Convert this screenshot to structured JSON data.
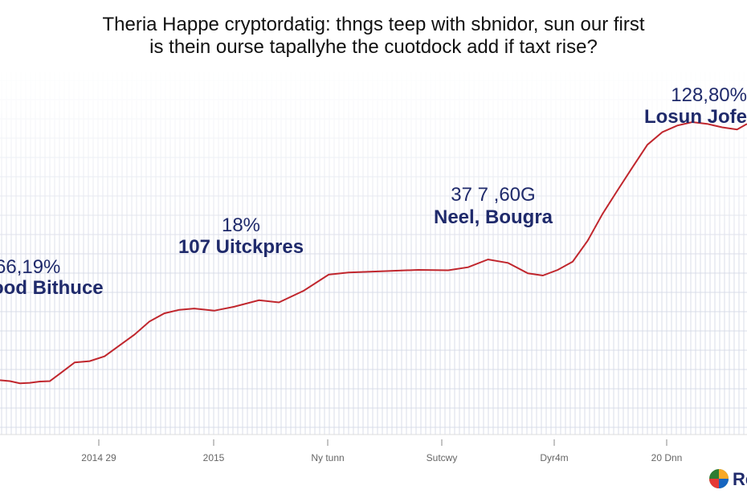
{
  "chart_data": {
    "type": "line",
    "title_lines": [
      "Theria Happe cryptordatig: thngs teep with sbnidor, sun our first",
      "is thein ourse tapallyhe the cuotdock add if taxt rise?"
    ],
    "x_tick_labels": [
      "2014 29",
      "2015",
      "Ny tunn",
      "Sutcwy",
      "Dyr4m",
      "20 Dnn"
    ],
    "x": [
      0,
      0.2,
      0.4,
      0.6,
      0.8,
      1.0,
      1.2,
      1.5,
      1.8,
      2.1,
      2.4,
      2.7,
      3.0,
      3.3,
      3.6,
      3.9,
      4.3,
      4.7,
      5.2,
      5.6,
      6.1,
      6.6,
      7.0,
      7.7,
      8.4,
      9.0,
      9.4,
      9.8,
      10.2,
      10.6,
      10.9,
      11.2,
      11.5,
      11.8,
      12.1,
      12.4,
      12.7,
      13.0,
      13.3,
      13.6,
      13.9,
      14.2,
      14.5,
      14.8,
      15.0
    ],
    "y": [
      12.5,
      12.3,
      11.8,
      11.9,
      12.2,
      12.3,
      14.0,
      16.6,
      16.9,
      18.0,
      20.5,
      23.0,
      26.0,
      27.9,
      28.7,
      29.0,
      28.5,
      29.4,
      30.9,
      30.4,
      33.1,
      36.8,
      37.3,
      37.6,
      37.9,
      37.8,
      38.5,
      40.3,
      39.5,
      37.1,
      36.6,
      37.9,
      39.8,
      44.6,
      50.8,
      56.2,
      61.5,
      66.7,
      69.6,
      71.1,
      71.9,
      71.5,
      70.7,
      70.2,
      71.5
    ],
    "ylim": [
      0,
      100
    ],
    "line_color": "#c0262d",
    "annotations": [
      {
        "value": "66,19%",
        "label": "ood Bithuce",
        "color": "#1f2a6b"
      },
      {
        "value": "18%",
        "label": "107 Uitckpres",
        "color": "#1f2a6b"
      },
      {
        "value": "37 7 ,60G",
        "label": "Neel, Bougra",
        "color": "#1f2a6b"
      },
      {
        "value": "128,80%",
        "label": "Losun Jofe",
        "color": "#1f2a6b"
      }
    ],
    "grid": true,
    "grid_color": "#d9dce8"
  },
  "logo": {
    "text": "Re",
    "icon": "pie-logo-icon"
  }
}
